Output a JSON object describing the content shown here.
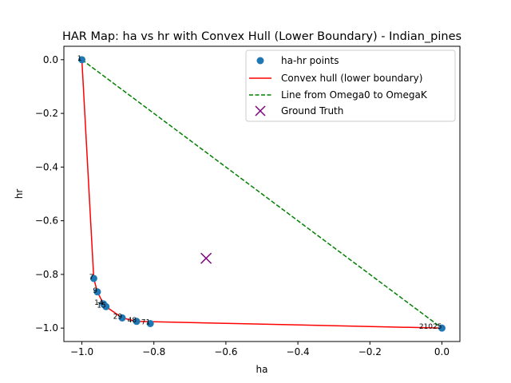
{
  "chart_data": {
    "type": "scatter",
    "title": "HAR Map: ha vs hr with Convex Hull (Lower Boundary) - Indian_pines",
    "xlabel": "ha",
    "ylabel": "hr",
    "xlim": [
      -1.05,
      0.05
    ],
    "ylim": [
      -1.05,
      0.05
    ],
    "xticks": [
      -1.0,
      -0.8,
      -0.6,
      -0.4,
      -0.2,
      0.0
    ],
    "xtick_labels": [
      "−1.0",
      "−0.8",
      "−0.6",
      "−0.4",
      "−0.2",
      "0.0"
    ],
    "yticks": [
      0.0,
      -0.2,
      -0.4,
      -0.6,
      -0.8,
      -1.0
    ],
    "ytick_labels": [
      "0.0",
      "−0.2",
      "−0.4",
      "−0.6",
      "−0.8",
      "−1.0"
    ],
    "grid": false,
    "legend_position": "top-right",
    "colors": {
      "points": "#1f77b4",
      "hull": "#ff0000",
      "line": "#008000",
      "ground_truth": "#800080"
    },
    "points": [
      {
        "x": -1.0,
        "y": 0.0,
        "label": "1"
      },
      {
        "x": -0.967,
        "y": -0.815,
        "label": "7"
      },
      {
        "x": -0.957,
        "y": -0.865,
        "label": "9"
      },
      {
        "x": -0.94,
        "y": -0.91,
        "label": "14"
      },
      {
        "x": -0.933,
        "y": -0.92,
        "label": "15"
      },
      {
        "x": -0.888,
        "y": -0.962,
        "label": "29"
      },
      {
        "x": -0.848,
        "y": -0.975,
        "label": "48"
      },
      {
        "x": -0.81,
        "y": -0.983,
        "label": "71"
      },
      {
        "x": 0.0,
        "y": -1.0,
        "label": "21025"
      }
    ],
    "hull": [
      {
        "x": -1.0,
        "y": 0.0
      },
      {
        "x": -0.967,
        "y": -0.815
      },
      {
        "x": -0.957,
        "y": -0.865
      },
      {
        "x": -0.94,
        "y": -0.91
      },
      {
        "x": -0.933,
        "y": -0.92
      },
      {
        "x": -0.888,
        "y": -0.962
      },
      {
        "x": -0.848,
        "y": -0.975
      },
      {
        "x": 0.0,
        "y": -1.0
      }
    ],
    "line": [
      {
        "x": -1.0,
        "y": 0.0
      },
      {
        "x": 0.0,
        "y": -1.0
      }
    ],
    "ground_truth": {
      "x": -0.655,
      "y": -0.74
    },
    "legend": [
      {
        "label": "ha-hr points",
        "marker": "dot"
      },
      {
        "label": "Convex hull (lower boundary)",
        "marker": "solid-line"
      },
      {
        "label": "Line from Omega0 to OmegaK",
        "marker": "dashed-line"
      },
      {
        "label": "Ground Truth",
        "marker": "x"
      }
    ]
  }
}
